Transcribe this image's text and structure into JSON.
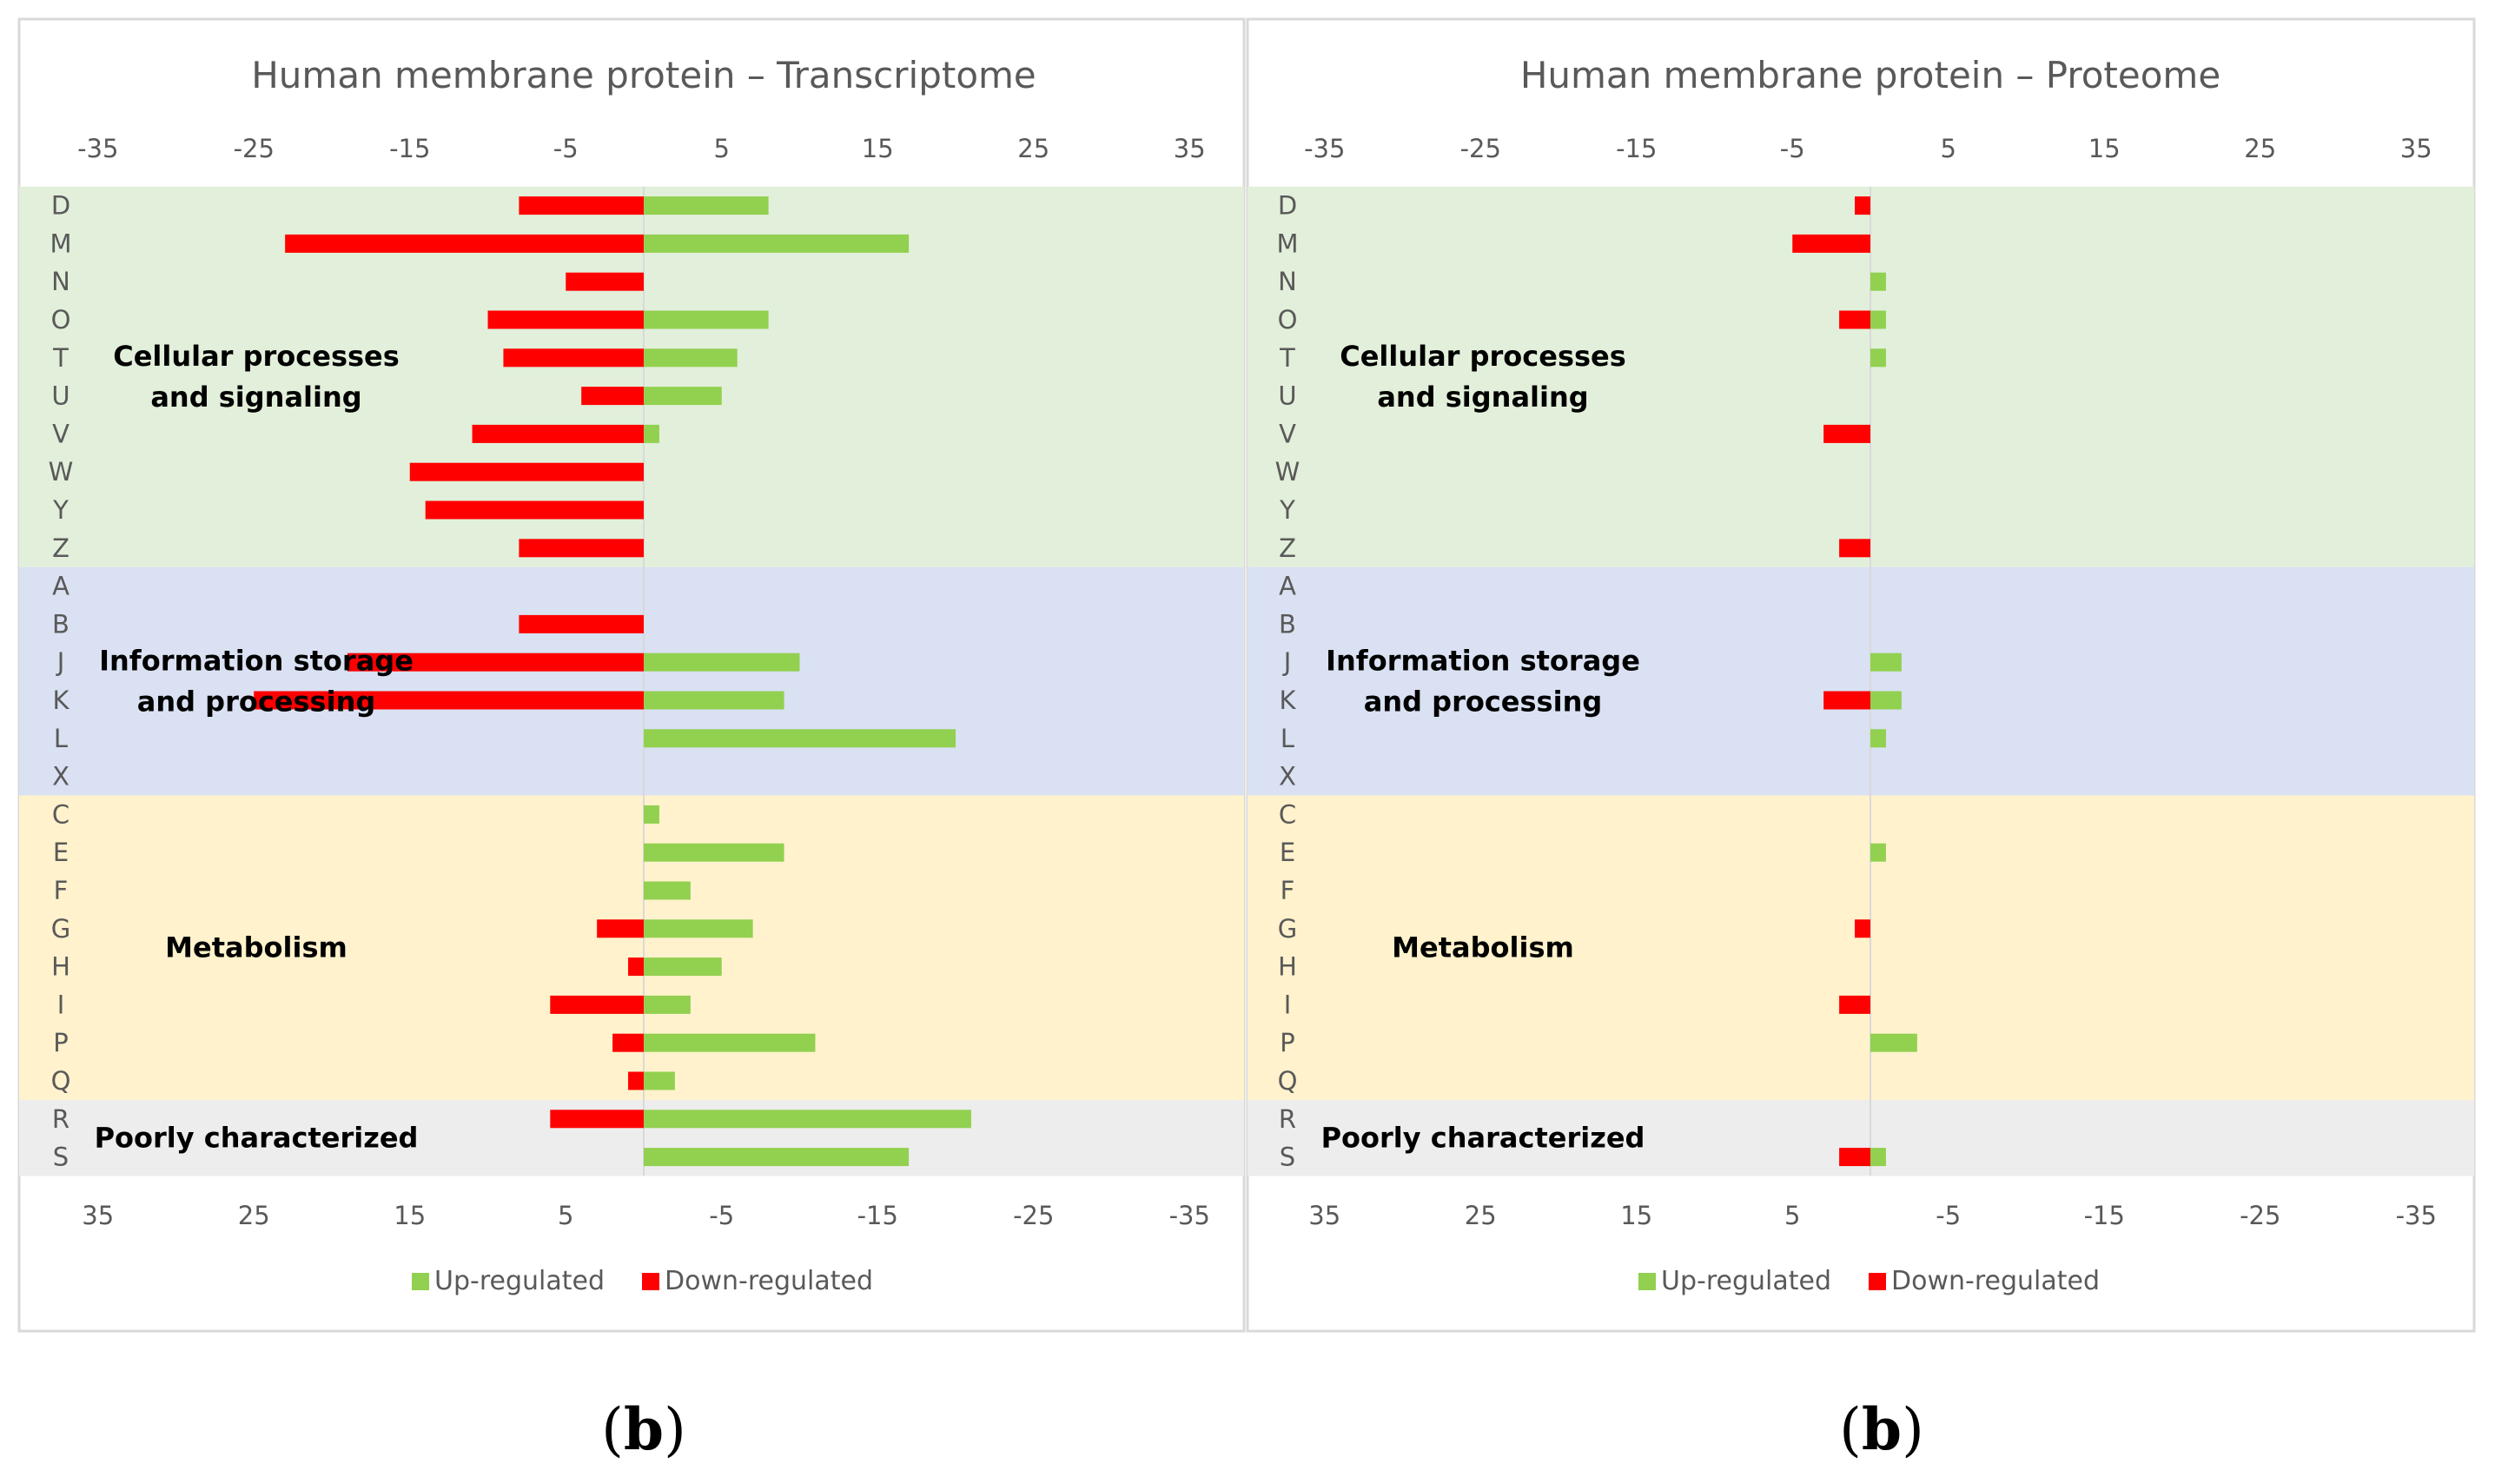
{
  "chart_data": [
    {
      "type": "bar",
      "orientation": "horizontal",
      "title": "Human membrane protein – Transcriptome",
      "panel_label": "b",
      "categories": [
        "D",
        "M",
        "N",
        "O",
        "T",
        "U",
        "V",
        "W",
        "Y",
        "Z",
        "A",
        "B",
        "J",
        "K",
        "L",
        "X",
        "C",
        "E",
        "F",
        "G",
        "H",
        "I",
        "P",
        "Q",
        "R",
        "S"
      ],
      "series": [
        {
          "name": "Up-regulated",
          "color": "#92d050",
          "values": [
            8,
            17,
            0,
            8,
            6,
            5,
            1,
            0,
            0,
            0,
            0,
            0,
            10,
            9,
            20,
            0,
            1,
            9,
            3,
            7,
            5,
            3,
            11,
            2,
            21,
            17
          ]
        },
        {
          "name": "Down-regulated",
          "color": "#ff0000",
          "values": [
            -8,
            -23,
            -5,
            -10,
            -9,
            -4,
            -11,
            -15,
            -14,
            -8,
            0,
            -8,
            -19,
            -25,
            0,
            0,
            0,
            0,
            0,
            -3,
            -1,
            -6,
            -2,
            -1,
            -6,
            0
          ]
        }
      ],
      "xlim": [
        -35,
        35
      ],
      "top_ticks": [
        "-35",
        "-25",
        "-15",
        "-5",
        "5",
        "15",
        "25",
        "35"
      ],
      "bottom_ticks": [
        "35",
        "25",
        "15",
        "5",
        "-5",
        "-15",
        "-25",
        "-35"
      ],
      "groups": [
        {
          "label_lines": [
            "Cellular processes",
            "and signaling"
          ],
          "from": "D",
          "to": "Z",
          "color": "#e2efda"
        },
        {
          "label_lines": [
            "Information storage",
            "and processing"
          ],
          "from": "A",
          "to": "X",
          "color": "#d9e1f2"
        },
        {
          "label_lines": [
            "Metabolism"
          ],
          "from": "C",
          "to": "Q",
          "color": "#fff2cc"
        },
        {
          "label_lines": [
            "Poorly characterized"
          ],
          "from": "R",
          "to": "S",
          "color": "#ededed"
        }
      ],
      "legend": [
        "Up-regulated",
        "Down-regulated"
      ],
      "legend_position": "bottom"
    },
    {
      "type": "bar",
      "orientation": "horizontal",
      "title": "Human membrane protein – Proteome",
      "panel_label": "b",
      "categories": [
        "D",
        "M",
        "N",
        "O",
        "T",
        "U",
        "V",
        "W",
        "Y",
        "Z",
        "A",
        "B",
        "J",
        "K",
        "L",
        "X",
        "C",
        "E",
        "F",
        "G",
        "H",
        "I",
        "P",
        "Q",
        "R",
        "S"
      ],
      "series": [
        {
          "name": "Up-regulated",
          "color": "#92d050",
          "values": [
            0,
            0,
            1,
            1,
            1,
            0,
            0,
            0,
            0,
            0,
            0,
            0,
            2,
            2,
            1,
            0,
            0,
            1,
            0,
            0,
            0,
            0,
            3,
            0,
            0,
            1
          ]
        },
        {
          "name": "Down-regulated",
          "color": "#ff0000",
          "values": [
            -1,
            -5,
            0,
            -2,
            0,
            0,
            -3,
            0,
            0,
            -2,
            0,
            0,
            0,
            -3,
            0,
            0,
            0,
            0,
            0,
            -1,
            0,
            -2,
            0,
            0,
            0,
            -2
          ]
        }
      ],
      "xlim": [
        -35,
        35
      ],
      "top_ticks": [
        "-35",
        "-25",
        "-15",
        "-5",
        "5",
        "15",
        "25",
        "35"
      ],
      "bottom_ticks": [
        "35",
        "25",
        "15",
        "5",
        "-5",
        "-15",
        "-25",
        "-35"
      ],
      "groups": [
        {
          "label_lines": [
            "Cellular processes",
            "and signaling"
          ],
          "from": "D",
          "to": "Z",
          "color": "#e2efda"
        },
        {
          "label_lines": [
            "Information storage",
            "and processing"
          ],
          "from": "A",
          "to": "X",
          "color": "#d9e1f2"
        },
        {
          "label_lines": [
            "Metabolism"
          ],
          "from": "C",
          "to": "Q",
          "color": "#fff2cc"
        },
        {
          "label_lines": [
            "Poorly characterized"
          ],
          "from": "R",
          "to": "S",
          "color": "#ededed"
        }
      ],
      "legend": [
        "Up-regulated",
        "Down-regulated"
      ],
      "legend_position": "bottom"
    }
  ]
}
